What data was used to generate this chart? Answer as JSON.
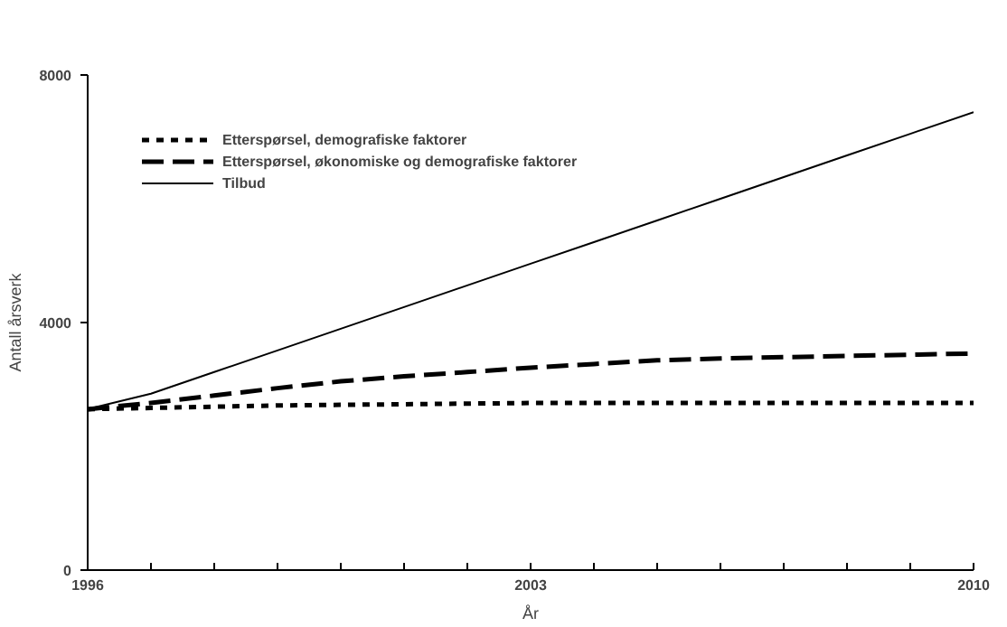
{
  "chart_data": {
    "type": "line",
    "xlabel": "År",
    "ylabel": "Antall årsverk",
    "x": [
      1996,
      1997,
      1998,
      1999,
      2000,
      2001,
      2002,
      2003,
      2004,
      2005,
      2006,
      2007,
      2008,
      2009,
      2010
    ],
    "xlim": [
      1996,
      2010
    ],
    "xticks": [
      1996,
      {
        "value": 1997,
        "label": null
      },
      {
        "value": 1998,
        "label": null
      },
      {
        "value": 1999,
        "label": null
      },
      {
        "value": 2000,
        "label": null
      },
      {
        "value": 2001,
        "label": null
      },
      {
        "value": 2002,
        "label": null
      },
      2003,
      {
        "value": 2004,
        "label": null
      },
      {
        "value": 2005,
        "label": null
      },
      {
        "value": 2006,
        "label": null
      },
      {
        "value": 2007,
        "label": null
      },
      {
        "value": 2008,
        "label": null
      },
      {
        "value": 2009,
        "label": null
      },
      2010
    ],
    "ylim": [
      0,
      8000
    ],
    "yticks": [
      0,
      4000,
      8000
    ],
    "grid": false,
    "legend": "top left",
    "series": [
      {
        "name": "Etterspørsel, demografiske faktorer",
        "color": "#000000",
        "line_style": "dotted",
        "values": [
          2600,
          2620,
          2640,
          2660,
          2670,
          2680,
          2690,
          2700,
          2700,
          2700,
          2700,
          2700,
          2700,
          2700,
          2700
        ]
      },
      {
        "name": "Etterspørsel, økonomiske og demografiske faktorer",
        "color": "#000000",
        "line_style": "dashed",
        "values": [
          2600,
          2700,
          2820,
          2940,
          3050,
          3130,
          3200,
          3270,
          3330,
          3390,
          3420,
          3440,
          3460,
          3480,
          3500
        ]
      },
      {
        "name": "Tilbud",
        "color": "#000000",
        "line_style": "solid",
        "values": [
          2600,
          2850,
          3200,
          3550,
          3900,
          4250,
          4600,
          4950,
          5300,
          5650,
          6000,
          6350,
          6700,
          7050,
          7400
        ]
      }
    ]
  }
}
